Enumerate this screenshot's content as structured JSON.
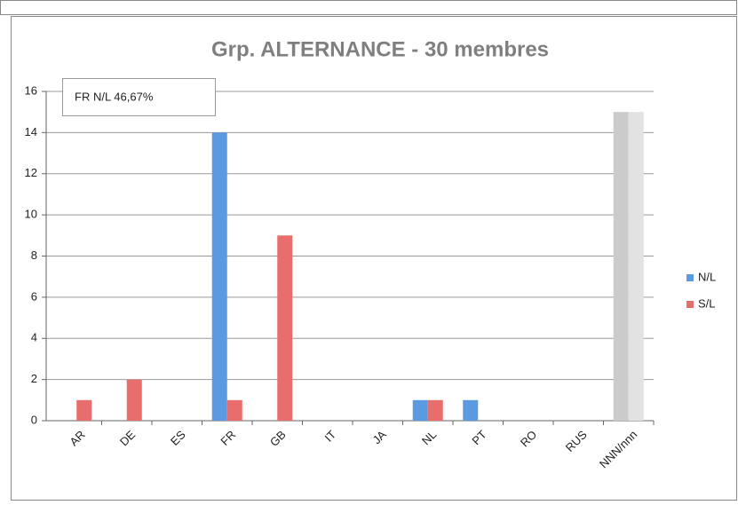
{
  "chart_data": {
    "type": "bar",
    "title": "Grp. ALTERNANCE - 30 membres",
    "annotation": "FR N/L  46,67%",
    "categories": [
      "AR",
      "DE",
      "ES",
      "FR",
      "GB",
      "IT",
      "JA",
      "NL",
      "PT",
      "RO",
      "RUS",
      "NNN/nnn"
    ],
    "series": [
      {
        "name": "N/L",
        "color": "#5b9ae0",
        "values": [
          0,
          0,
          0,
          14,
          0,
          0,
          0,
          1,
          1,
          0,
          0,
          15
        ],
        "colors": [
          "#5b9ae0",
          "#5b9ae0",
          "#5b9ae0",
          "#5b9ae0",
          "#5b9ae0",
          "#5b9ae0",
          "#5b9ae0",
          "#5b9ae0",
          "#5b9ae0",
          "#5b9ae0",
          "#5b9ae0",
          "#cbcbcb"
        ]
      },
      {
        "name": "S/L",
        "color": "#e86d6d",
        "values": [
          1,
          2,
          0,
          1,
          9,
          0,
          0,
          1,
          0,
          0,
          0,
          15
        ],
        "colors": [
          "#e86d6d",
          "#e86d6d",
          "#e86d6d",
          "#e86d6d",
          "#e86d6d",
          "#e86d6d",
          "#e86d6d",
          "#e86d6d",
          "#e86d6d",
          "#e86d6d",
          "#e86d6d",
          "#e2e2e2"
        ]
      }
    ],
    "ylim": [
      0,
      16
    ],
    "yticks": [
      0,
      2,
      4,
      6,
      8,
      10,
      12,
      14,
      16
    ],
    "grid": true,
    "legend": "right"
  }
}
